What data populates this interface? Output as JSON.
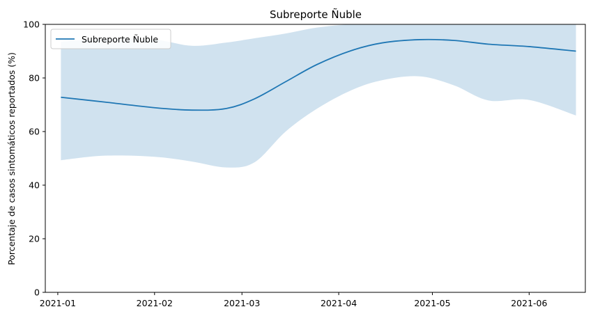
{
  "chart_data": {
    "type": "line",
    "title": "Subreporte Ñuble",
    "xlabel": "",
    "ylabel": "Porcentaje de casos sintomáticos reportados (%)",
    "ylim": [
      0,
      100
    ],
    "xlim": [
      "2020-12-28",
      "2021-06-19"
    ],
    "y_ticks": [
      0,
      20,
      40,
      60,
      80,
      100
    ],
    "x_ticks": [
      "2021-01",
      "2021-02",
      "2021-03",
      "2021-04",
      "2021-05",
      "2021-06"
    ],
    "x_tick_dates": [
      "2021-01-01",
      "2021-02-01",
      "2021-03-01",
      "2021-04-01",
      "2021-05-01",
      "2021-06-01"
    ],
    "grid": false,
    "legend_position": "top-left",
    "series": [
      {
        "name": "Subreporte Ñuble",
        "color": "#1f77b4",
        "band_color": "#d0e2ef",
        "x": [
          "2021-01-02",
          "2021-01-16",
          "2021-02-01",
          "2021-02-13",
          "2021-02-24",
          "2021-03-05",
          "2021-03-15",
          "2021-03-25",
          "2021-04-05",
          "2021-04-15",
          "2021-04-27",
          "2021-05-08",
          "2021-05-19",
          "2021-06-01",
          "2021-06-16"
        ],
        "y": [
          72.8,
          71.0,
          68.9,
          68.0,
          68.6,
          72.2,
          78.6,
          85.0,
          90.2,
          93.1,
          94.3,
          94.0,
          92.6,
          91.7,
          90.0
        ],
        "lower": [
          49.3,
          51.0,
          50.6,
          48.8,
          46.6,
          48.5,
          60.0,
          68.5,
          75.4,
          79.2,
          80.6,
          77.2,
          71.6,
          71.8,
          66.0
        ],
        "upper": [
          93.5,
          94.6,
          94.3,
          92.0,
          93.2,
          94.8,
          96.6,
          98.8,
          100,
          100,
          100,
          100,
          100,
          100,
          100
        ]
      }
    ]
  }
}
